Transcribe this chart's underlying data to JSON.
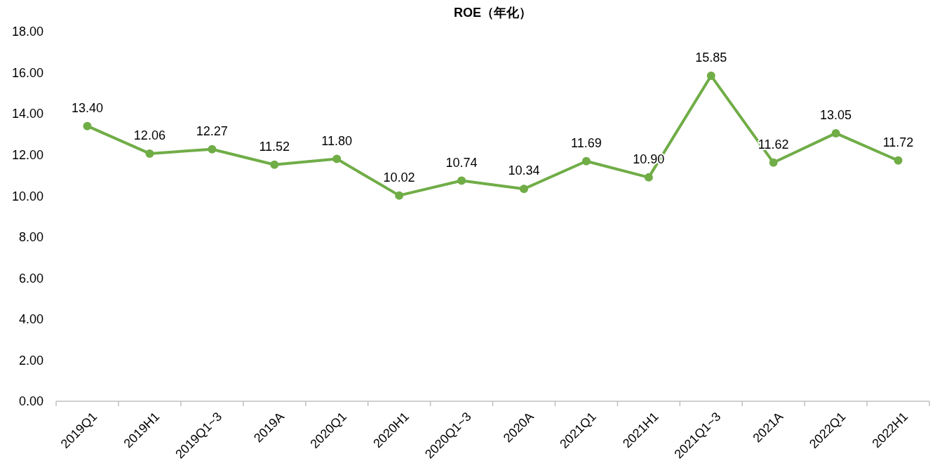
{
  "chart_data": {
    "type": "line",
    "title": "ROE（年化）",
    "categories": [
      "2019Q1",
      "2019H1",
      "2019Q1~3",
      "2019A",
      "2020Q1",
      "2020H1",
      "2020Q1~3",
      "2020A",
      "2021Q1",
      "2021H1",
      "2021Q1~3",
      "2021A",
      "2022Q1",
      "2022H1"
    ],
    "series": [
      {
        "color": "#70ad47",
        "values": [
          13.4,
          12.06,
          12.27,
          11.52,
          11.8,
          10.02,
          10.74,
          10.34,
          11.69,
          10.9,
          15.85,
          11.62,
          13.05,
          11.72
        ]
      }
    ],
    "value_labels": [
      "13.40",
      "12.06",
      "12.27",
      "11.52",
      "11.80",
      "10.02",
      "10.74",
      "10.34",
      "11.69",
      "10.90",
      "15.85",
      "11.62",
      "13.05",
      "11.72"
    ],
    "ylim": [
      0,
      18
    ],
    "yticks": [
      {
        "value": 0,
        "label": "0.00"
      },
      {
        "value": 2,
        "label": "2.00"
      },
      {
        "value": 4,
        "label": "4.00"
      },
      {
        "value": 6,
        "label": "6.00"
      },
      {
        "value": 8,
        "label": "8.00"
      },
      {
        "value": 10,
        "label": "10.00"
      },
      {
        "value": 12,
        "label": "12.00"
      },
      {
        "value": 14,
        "label": "14.00"
      },
      {
        "value": 16,
        "label": "16.00"
      },
      {
        "value": 18,
        "label": "18.00"
      }
    ],
    "marker": "circle",
    "line_style": "solid",
    "grid": false
  }
}
